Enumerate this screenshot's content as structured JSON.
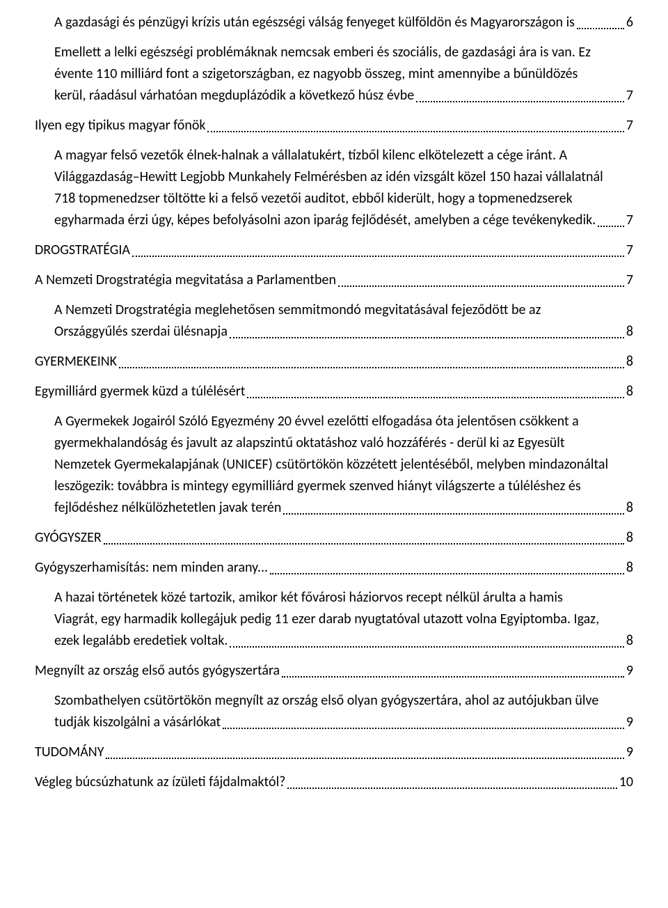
{
  "colors": {
    "text": "#000000",
    "background": "#ffffff"
  },
  "typography": {
    "font_family": "Calibri",
    "font_size_pt": 15,
    "line_height": 1.45
  },
  "toc": [
    {
      "level": 1,
      "lines": [],
      "last_line": "A gazdasági és pénzügyi krízis után egészségi válság fenyeget külföldön és Magyarországon is",
      "page": "6"
    },
    {
      "level": 2,
      "lines": [
        "Emellett a lelki egészségi problémáknak nemcsak emberi és szociális, de gazdasági ára is van. Ez",
        "évente 110 milliárd font a szigetországban, ez nagyobb összeg, mint amennyibe a bűnüldözés"
      ],
      "last_line": "kerül, ráadásul várhatóan megduplázódik a következő húsz évbe",
      "page": "7"
    },
    {
      "level": 0,
      "lines": [],
      "last_line": "Ilyen egy tipikus magyar főnök",
      "page": "7"
    },
    {
      "level": 2,
      "lines": [
        "A magyar felső vezetők élnek-halnak a vállalatukért, tízből kilenc elkötelezett a cége iránt. A",
        "Világgazdaság–Hewitt Legjobb Munkahely Felmérésben az idén vizsgált közel 150 hazai vállalatnál",
        "718 topmenedzser töltötte ki a felső vezetői auditot, ebből kiderült, hogy a topmenedzserek"
      ],
      "last_line": "egyharmada érzi úgy, képes befolyásolni azon iparág fejlődését, amelyben a cége tevékenykedik.",
      "page": "7"
    },
    {
      "level": 0,
      "lines": [],
      "last_line": "DROGSTRATÉGIA",
      "page": "7"
    },
    {
      "level": 0,
      "lines": [],
      "last_line": "A Nemzeti Drogstratégia megvitatása a Parlamentben",
      "page": "7"
    },
    {
      "level": 2,
      "lines": [
        "A Nemzeti Drogstratégia meglehetősen semmitmondó megvitatásával fejeződött be az"
      ],
      "last_line": "Országgyűlés szerdai ülésnapja",
      "page": "8"
    },
    {
      "level": 0,
      "lines": [],
      "last_line": "GYERMEKEINK",
      "page": "8"
    },
    {
      "level": 0,
      "lines": [],
      "last_line": "Egymilliárd gyermek küzd a túlélésért",
      "page": "8"
    },
    {
      "level": 2,
      "lines": [
        "A Gyermekek Jogairól Szóló Egyezmény 20 évvel ezelőtti elfogadása óta jelentősen csökkent a",
        "gyermekhalandóság és javult az alapszintű oktatáshoz való hozzáférés - derül ki az Egyesült",
        "Nemzetek Gyermekalapjának (UNICEF) csütörtökön közzétett jelentéséből, melyben mindazonáltal",
        "leszögezik: továbbra is mintegy egymilliárd gyermek szenved hiányt világszerte a túléléshez és"
      ],
      "last_line": "fejlődéshez nélkülözhetetlen javak terén",
      "page": "8"
    },
    {
      "level": 0,
      "lines": [],
      "last_line": "GYÓGYSZER",
      "page": "8"
    },
    {
      "level": 0,
      "lines": [],
      "last_line": "Gyógyszerhamisítás: nem minden arany...",
      "page": "8"
    },
    {
      "level": 2,
      "lines": [
        "A hazai történetek közé tartozik, amikor két fővárosi háziorvos recept nélkül árulta a hamis",
        "Viagrát, egy harmadik kollegájuk pedig 11 ezer darab nyugtatóval utazott volna Egyiptomba. Igaz,"
      ],
      "last_line": "ezek legalább eredetiek voltak.",
      "page": "8"
    },
    {
      "level": 0,
      "lines": [],
      "last_line": "Megnyílt az ország első autós gyógyszertára",
      "page": "9"
    },
    {
      "level": 2,
      "lines": [
        "Szombathelyen csütörtökön megnyílt az ország első olyan gyógyszertára, ahol az autójukban ülve"
      ],
      "last_line": "tudják kiszolgálni a vásárlókat",
      "page": "9"
    },
    {
      "level": 0,
      "lines": [],
      "last_line": "TUDOMÁNY",
      "page": "9"
    },
    {
      "level": 0,
      "lines": [],
      "last_line": "Végleg búcsúzhatunk az ízületi fájdalmaktól?",
      "page": "10"
    }
  ]
}
